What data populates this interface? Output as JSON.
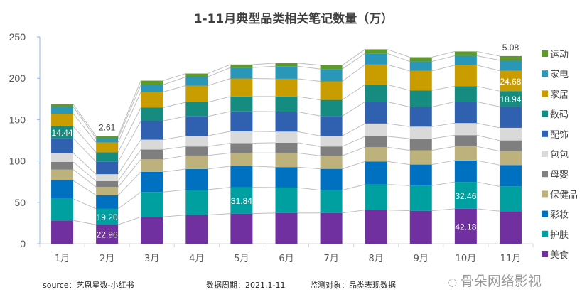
{
  "chart_data": {
    "type": "bar",
    "stacked": true,
    "title": "1-11月典型品类相关笔记数量（万）",
    "xlabel": "",
    "ylabel": "",
    "ylim": [
      0,
      250
    ],
    "yticks": [
      0,
      50,
      100,
      150,
      200,
      250
    ],
    "categories": [
      "1月",
      "2月",
      "3月",
      "4月",
      "5月",
      "6月",
      "7月",
      "8月",
      "9月",
      "10月",
      "11月"
    ],
    "legend_position": "right",
    "series": [
      {
        "name": "美食",
        "color": "#7030A0",
        "values": [
          28.1,
          22.96,
          32.4,
          34.7,
          36.4,
          37.0,
          37.2,
          40.7,
          39.8,
          42.18,
          39.3
        ]
      },
      {
        "name": "护肤",
        "color": "#00A0A0",
        "values": [
          26.3,
          19.2,
          30.1,
          30.6,
          31.84,
          30.9,
          27.6,
          30.9,
          30.4,
          32.46,
          30.0
        ]
      },
      {
        "name": "彩妆",
        "color": "#0070C0",
        "values": [
          22.1,
          16.4,
          24.3,
          25.0,
          25.5,
          24.7,
          25.7,
          27.8,
          25.5,
          26.0,
          25.8
        ]
      },
      {
        "name": "保健品",
        "color": "#BDB27C",
        "values": [
          13.2,
          10.0,
          15.2,
          16.3,
          16.0,
          17.1,
          15.8,
          17.2,
          17.2,
          16.9,
          16.9
        ]
      },
      {
        "name": "母婴",
        "color": "#7F7F7F",
        "values": [
          9.2,
          7.2,
          11.8,
          10.9,
          11.8,
          12.4,
          11.2,
          13.2,
          14.1,
          13.7,
          12.9
        ]
      },
      {
        "name": "包包",
        "color": "#D9D9D9",
        "values": [
          10.8,
          8.3,
          12.0,
          12.9,
          14.3,
          13.4,
          12.9,
          15.5,
          14.5,
          14.6,
          15.2
        ]
      },
      {
        "name": "配饰",
        "color": "#3060B0",
        "values": [
          17.8,
          14.9,
          22.6,
          23.5,
          24.1,
          24.1,
          24.0,
          26.3,
          23.8,
          25.8,
          25.5
        ]
      },
      {
        "name": "数码",
        "color": "#168C80",
        "values": [
          14.44,
          11.4,
          16.1,
          17.1,
          18.0,
          18.3,
          19.5,
          20.7,
          20.1,
          18.7,
          18.94
        ]
      },
      {
        "name": "家居",
        "color": "#C99C00",
        "values": [
          15.2,
          12.1,
          18.9,
          20.1,
          21.8,
          21.5,
          22.4,
          24.3,
          23.5,
          25.5,
          24.68
        ]
      },
      {
        "name": "家电",
        "color": "#2A96B8",
        "values": [
          8.3,
          5.1,
          8.6,
          10.6,
          13.2,
          15.2,
          14.9,
          13.5,
          11.4,
          11.4,
          12.6
        ]
      },
      {
        "name": "运动",
        "color": "#5E9A2A",
        "values": [
          3.1,
          2.61,
          5.1,
          4.0,
          3.7,
          3.7,
          4.6,
          4.9,
          5.2,
          5.2,
          5.08
        ]
      }
    ],
    "data_labels": [
      {
        "series": "数码",
        "category": "1月",
        "text": "14.44",
        "color": "#ffffff",
        "position": "inside"
      },
      {
        "series": "美食",
        "category": "2月",
        "text": "22.96",
        "color": "#ffffff",
        "position": "inside"
      },
      {
        "series": "护肤",
        "category": "2月",
        "text": "19.20",
        "color": "#ffffff",
        "position": "inside"
      },
      {
        "series": "运动",
        "category": "2月",
        "text": "2.61",
        "color": "#404040",
        "position": "above"
      },
      {
        "series": "护肤",
        "category": "5月",
        "text": "31.84",
        "color": "#ffffff",
        "position": "inside"
      },
      {
        "series": "美食",
        "category": "10月",
        "text": "42.18",
        "color": "#ffffff",
        "position": "inside"
      },
      {
        "series": "护肤",
        "category": "10月",
        "text": "32.46",
        "color": "#ffffff",
        "position": "inside"
      },
      {
        "series": "运动",
        "category": "11月",
        "text": "5.08",
        "color": "#404040",
        "position": "above"
      },
      {
        "series": "家居",
        "category": "11月",
        "text": "24.68",
        "color": "#ffffff",
        "position": "inside"
      },
      {
        "series": "数码",
        "category": "11月",
        "text": "18.94",
        "color": "#ffffff",
        "position": "inside"
      }
    ]
  },
  "footer": {
    "source": "source：艺恩星数-小红书",
    "period": "数据周期：2021.1-11",
    "target": "监测对象：品类表现数据"
  },
  "watermark": "骨朵网络影视"
}
